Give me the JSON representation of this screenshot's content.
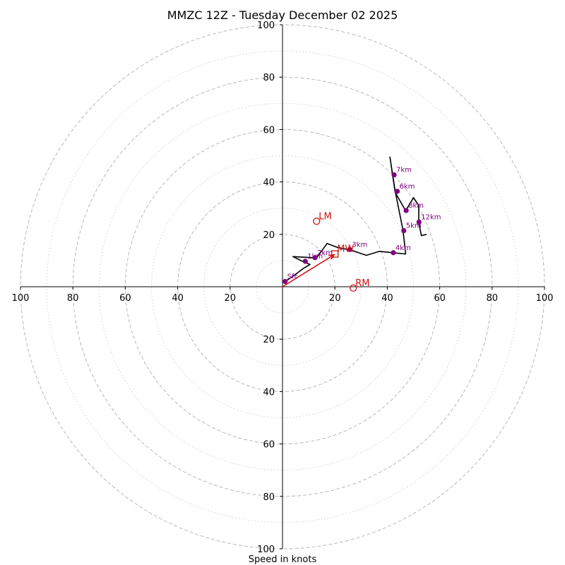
{
  "chart_data": {
    "type": "hodograph",
    "title": "MMZC 12Z - Tuesday December 02 2025",
    "xlabel": "Speed in knots",
    "range": [
      -100,
      100
    ],
    "ring_major": [
      20,
      40,
      60,
      80,
      100
    ],
    "ring_minor": [
      10,
      30,
      50,
      70,
      90
    ],
    "tick_labels": [
      "20",
      "40",
      "60",
      "80",
      "100"
    ],
    "hodograph": [
      [
        1,
        2
      ],
      [
        4,
        4
      ],
      [
        8,
        7
      ],
      [
        10.5,
        8.5
      ],
      [
        7,
        10
      ],
      [
        4,
        11.5
      ],
      [
        13,
        11
      ],
      [
        17,
        16.5
      ],
      [
        21,
        15
      ],
      [
        26,
        14
      ],
      [
        32,
        12
      ],
      [
        37,
        13.5
      ],
      [
        42,
        13
      ],
      [
        47,
        12.5
      ],
      [
        46,
        21.5
      ],
      [
        43,
        36.5
      ],
      [
        42,
        43
      ],
      [
        41,
        49.5
      ],
      [
        43,
        36
      ],
      [
        47,
        29
      ],
      [
        50,
        34
      ],
      [
        52,
        31
      ],
      [
        52,
        24.5
      ],
      [
        53,
        19.5
      ],
      [
        55,
        20
      ]
    ],
    "height_points": [
      {
        "label": "Sfc",
        "u": 1,
        "v": 2
      },
      {
        "label": "1km",
        "u": 8.7,
        "v": 9.7
      },
      {
        "label": "2km",
        "u": 12.4,
        "v": 11.1
      },
      {
        "label": "3km",
        "u": 25.7,
        "v": 14.2
      },
      {
        "label": "4km",
        "u": 42.3,
        "v": 13
      },
      {
        "label": "5km",
        "u": 46.3,
        "v": 21.4
      },
      {
        "label": "6km",
        "u": 43.8,
        "v": 36.4
      },
      {
        "label": "7km",
        "u": 42.6,
        "v": 42.7
      },
      {
        "label": "8km",
        "u": 47.2,
        "v": 29.1
      },
      {
        "label": "12km",
        "u": 52.1,
        "v": 24.7
      }
    ],
    "motions": {
      "LM": {
        "label": "LM",
        "u": 13,
        "v": 25
      },
      "RM": {
        "label": "RM",
        "u": 27,
        "v": -0.5
      },
      "MW": {
        "label": "MW",
        "u": 20,
        "v": 12.5
      }
    },
    "colors": {
      "trace": "#000000",
      "points": "#800080",
      "motion": "#cc1111",
      "grid": "#b8b8b8"
    }
  }
}
